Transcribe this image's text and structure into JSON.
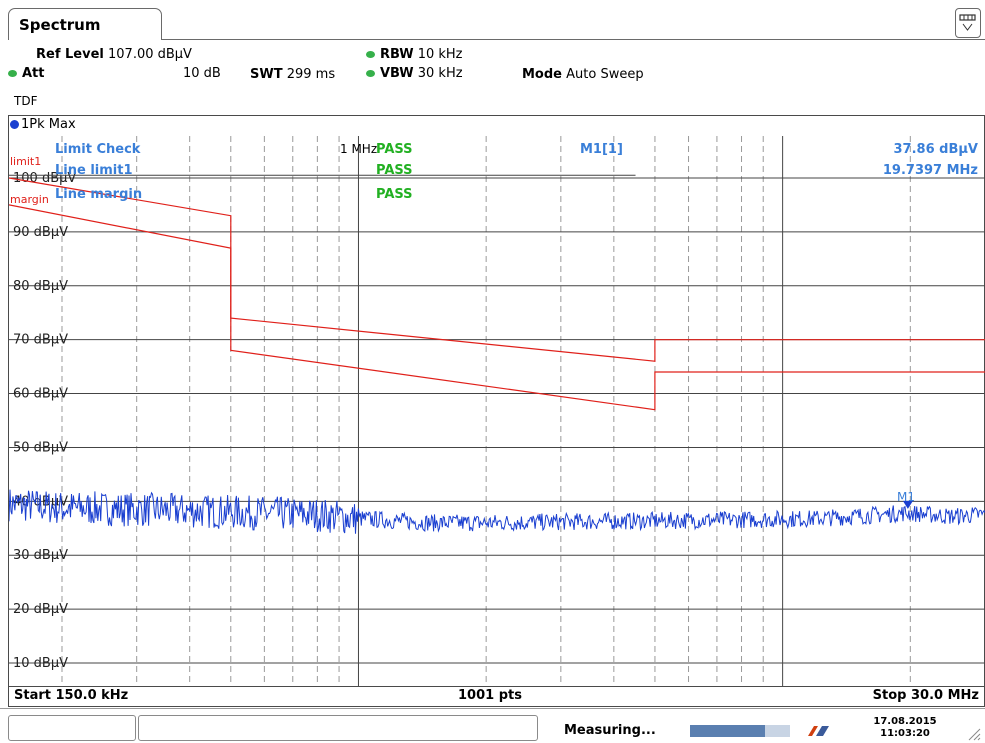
{
  "tab": {
    "title": "Spectrum"
  },
  "settings": {
    "ref_level_label": "Ref Level",
    "ref_level_value": "107.00 dBµV",
    "att_label": "Att",
    "att_value": "10 dB",
    "swt_label": "SWT",
    "swt_value": "299 ms",
    "rbw_label": "RBW",
    "rbw_value": "10 kHz",
    "vbw_label": "VBW",
    "vbw_value": "30 kHz",
    "mode_label": "Mode",
    "mode_value": "Auto Sweep",
    "tdf": "TDF",
    "indicator_color": "#36b04a"
  },
  "trace": {
    "label": "1Pk Max",
    "color": "#1a3fd0"
  },
  "limit_check": {
    "title": "Limit Check",
    "result": "PASS",
    "line1_label": "Line limit1",
    "line1_result": "PASS",
    "line2_label": "Line margin",
    "line2_result": "PASS",
    "limit1_tag": "limit1",
    "margin_tag": "margin",
    "freq_marker": "1 MHz"
  },
  "marker": {
    "name": "M1[1]",
    "level": "37.86 dBµV",
    "freq": "19.7397 MHz",
    "tag": "M1"
  },
  "footer": {
    "start": "Start 150.0 kHz",
    "points": "1001 pts",
    "stop": "Stop 30.0 MHz"
  },
  "status": {
    "measuring": "Measuring...",
    "date": "17.08.2015",
    "time": "11:03:20",
    "progress": 0.75
  },
  "colors": {
    "limit": "#e0201a",
    "trace": "#1a3fd0",
    "pass": "#22b022",
    "label_blue": "#3a7fd8"
  },
  "chart_data": {
    "type": "line",
    "x_scale": "log",
    "xlim": [
      0.15,
      30
    ],
    "ylim": [
      5,
      110
    ],
    "y_ticks": [
      {
        "value": 100,
        "label": "100 dBµV"
      },
      {
        "value": 90,
        "label": "90 dBµV"
      },
      {
        "value": 80,
        "label": "80 dBµV"
      },
      {
        "value": 70,
        "label": "70 dBµV"
      },
      {
        "value": 60,
        "label": "60 dBµV"
      },
      {
        "value": 50,
        "label": "50 dBµV"
      },
      {
        "value": 40,
        "label": "40 dBµV"
      },
      {
        "value": 30,
        "label": "30 dBµV"
      },
      {
        "value": 20,
        "label": "20 dBµV"
      },
      {
        "value": 10,
        "label": "10 dBµV"
      }
    ],
    "series": [
      {
        "name": "limit1",
        "x": [
          0.15,
          0.5,
          0.5,
          5,
          5,
          30
        ],
        "y": [
          100,
          93,
          74,
          66,
          70,
          70
        ]
      },
      {
        "name": "margin",
        "x": [
          0.15,
          0.5,
          0.5,
          5,
          5,
          30
        ],
        "y": [
          95,
          87,
          68,
          57,
          64,
          64
        ]
      },
      {
        "name": "1Pk Max",
        "x": [
          0.15,
          0.2,
          0.3,
          0.5,
          0.8,
          1,
          1.5,
          2,
          3,
          5,
          8,
          12,
          19.7397,
          25,
          30
        ],
        "y": [
          39.5,
          38.8,
          38.5,
          38,
          37.5,
          36.8,
          36,
          36,
          36.2,
          36.4,
          36.6,
          36.8,
          37.86,
          37.2,
          37.6
        ]
      }
    ],
    "marker": {
      "x": 19.7397,
      "y": 37.86
    }
  }
}
